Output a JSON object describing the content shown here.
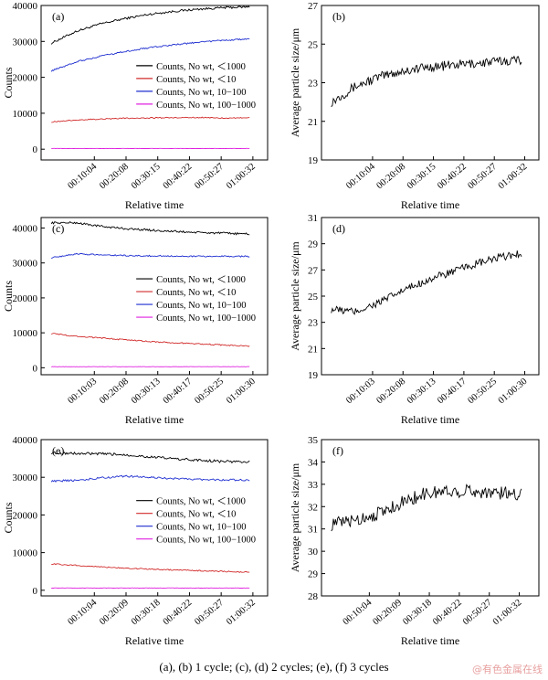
{
  "caption": "(a), (b) 1 cycle; (c), (d) 2 cycles; (e), (f) 3 cycles",
  "watermark": "@有色金属在线",
  "colors": {
    "black": "#000000",
    "red": "#d22c2c",
    "blue": "#1f2fd0",
    "magenta": "#e020e0"
  },
  "chart_data": [
    {
      "id": "a",
      "type": "line",
      "label": "(a)",
      "xlabel": "Relative time",
      "ylabel": "Counts",
      "xticks": [
        "00:10:04",
        "00:20:08",
        "00:30:15",
        "00:40:22",
        "00:50:27",
        "01:00:32"
      ],
      "ylim": [
        -3000,
        40000
      ],
      "yticks": [
        0,
        10000,
        20000,
        30000,
        40000
      ],
      "legend_position": "right-middle",
      "series": [
        {
          "name": "Counts, No wt, ＜1000",
          "color": "black",
          "values": [
            29500,
            32800,
            34900,
            36400,
            37600,
            38400,
            39000,
            39400,
            39600
          ],
          "noise": 300
        },
        {
          "name": "Counts, No wt, ＜10",
          "color": "red",
          "values": [
            7600,
            8100,
            8400,
            8600,
            8700,
            8800,
            8800,
            8700,
            8700
          ],
          "noise": 150
        },
        {
          "name": "Counts, No wt, 10−100",
          "color": "blue",
          "values": [
            21800,
            24300,
            25900,
            27200,
            28300,
            29100,
            29800,
            30300,
            30700
          ],
          "noise": 200
        },
        {
          "name": "Counts, No wt, 100−1000",
          "color": "magenta",
          "values": [
            200,
            200,
            200,
            200,
            200,
            200,
            200,
            200,
            200
          ],
          "noise": 40
        }
      ]
    },
    {
      "id": "b",
      "type": "line",
      "label": "(b)",
      "xlabel": "Relative time",
      "ylabel": "Average particle size/μm",
      "xticks": [
        "00:10:04",
        "00:20:08",
        "00:30:15",
        "00:40:22",
        "00:50:27",
        "01:00:32"
      ],
      "ylim": [
        19,
        27
      ],
      "yticks": [
        19,
        21,
        23,
        25,
        27
      ],
      "series": [
        {
          "name": "",
          "color": "black",
          "values": [
            22.0,
            22.8,
            23.3,
            23.6,
            23.8,
            23.9,
            24.0,
            24.1,
            24.2
          ],
          "noise": 0.25
        }
      ]
    },
    {
      "id": "c",
      "type": "line",
      "label": "(c)",
      "xlabel": "Relative time",
      "ylabel": "Counts",
      "xticks": [
        "00:10:03",
        "00:20:08",
        "00:30:13",
        "00:40:17",
        "00:50:25",
        "01:00:30"
      ],
      "ylim": [
        -2000,
        43000
      ],
      "yticks": [
        0,
        10000,
        20000,
        30000,
        40000
      ],
      "legend_position": "right-middle",
      "series": [
        {
          "name": "Counts, No wt, ＜1000",
          "color": "black",
          "values": [
            41500,
            41500,
            40500,
            39800,
            39400,
            39000,
            38700,
            38500,
            38300
          ],
          "noise": 300
        },
        {
          "name": "Counts, No wt, ＜10",
          "color": "red",
          "values": [
            9800,
            9000,
            8500,
            8000,
            7500,
            7100,
            6800,
            6500,
            6200
          ],
          "noise": 180
        },
        {
          "name": "Counts, No wt, 10−100",
          "color": "blue",
          "values": [
            31500,
            32600,
            32300,
            32100,
            32000,
            32000,
            31900,
            31900,
            31900
          ],
          "noise": 200
        },
        {
          "name": "Counts, No wt, 100−1000",
          "color": "magenta",
          "values": [
            300,
            300,
            300,
            300,
            300,
            300,
            300,
            300,
            300
          ],
          "noise": 40
        }
      ]
    },
    {
      "id": "d",
      "type": "line",
      "label": "(d)",
      "xlabel": "Relative time",
      "ylabel": "Average particle size/μm",
      "xticks": [
        "00:10:03",
        "00:20:08",
        "00:30:13",
        "00:40:17",
        "00:50:25",
        "01:00:30"
      ],
      "ylim": [
        19,
        31
      ],
      "yticks": [
        19,
        21,
        23,
        25,
        27,
        29,
        31
      ],
      "series": [
        {
          "name": "",
          "color": "black",
          "values": [
            24.0,
            23.8,
            24.5,
            25.4,
            26.2,
            26.8,
            27.4,
            27.9,
            28.3
          ],
          "noise": 0.3
        }
      ]
    },
    {
      "id": "e",
      "type": "line",
      "label": "(e)",
      "xlabel": "Relative time",
      "ylabel": "Counts",
      "xticks": [
        "00:10:04",
        "00:20:09",
        "00:30:18",
        "00:40:22",
        "00:50:27",
        "01:00:32"
      ],
      "ylim": [
        -1500,
        40000
      ],
      "yticks": [
        0,
        10000,
        20000,
        30000,
        40000
      ],
      "legend_position": "right-middle",
      "series": [
        {
          "name": "Counts, No wt, ＜1000",
          "color": "black",
          "values": [
            36500,
            36300,
            36200,
            36000,
            35400,
            34900,
            34500,
            34200,
            34100
          ],
          "noise": 350
        },
        {
          "name": "Counts, No wt, ＜10",
          "color": "red",
          "values": [
            7000,
            6600,
            6200,
            5900,
            5600,
            5400,
            5200,
            5000,
            4800
          ],
          "noise": 150
        },
        {
          "name": "Counts, No wt, 10−100",
          "color": "blue",
          "values": [
            29000,
            29200,
            29800,
            30300,
            30000,
            29600,
            29400,
            29300,
            29300
          ],
          "noise": 250
        },
        {
          "name": "Counts, No wt, 100−1000",
          "color": "magenta",
          "values": [
            600,
            600,
            600,
            600,
            600,
            600,
            600,
            600,
            600
          ],
          "noise": 40
        }
      ]
    },
    {
      "id": "f",
      "type": "line",
      "label": "(f)",
      "xlabel": "Relative time",
      "ylabel": "Average particle size/μm",
      "xticks": [
        "00:10:04",
        "00:20:09",
        "00:30:18",
        "00:40:22",
        "00:50:27",
        "01:00:32"
      ],
      "ylim": [
        28,
        35
      ],
      "yticks": [
        28,
        29,
        30,
        31,
        32,
        33,
        34,
        35
      ],
      "series": [
        {
          "name": "",
          "color": "black",
          "values": [
            31.2,
            31.4,
            31.7,
            32.2,
            32.6,
            32.7,
            32.7,
            32.6,
            32.6
          ],
          "noise": 0.3
        }
      ]
    }
  ]
}
